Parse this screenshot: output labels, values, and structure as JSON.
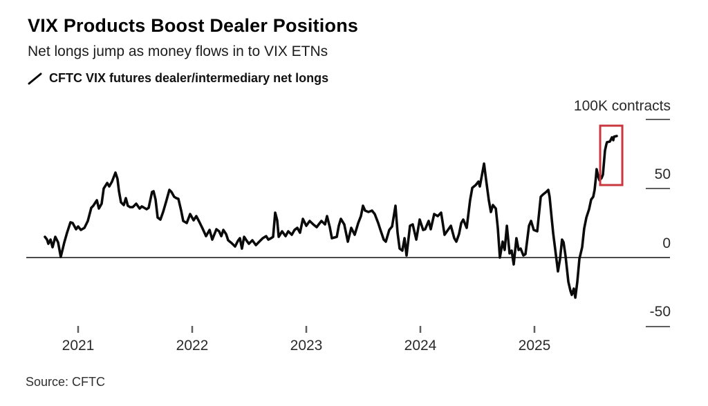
{
  "colors": {
    "background": "#ffffff",
    "title_text": "#000000",
    "subtitle_text": "#1b1b1b",
    "axis_text": "#2a2a2a",
    "tick": "#5e5e5e",
    "zero_line": "#4a4a4a",
    "series": "#0a0a0a",
    "highlight": "#c8373d"
  },
  "chart_data": {
    "type": "line",
    "title": "VIX Products Boost Dealer Positions",
    "subtitle": "Net longs jump as money flows in to VIX ETNs",
    "source": "Source: CFTC",
    "legend": [
      {
        "label": "CFTC VIX futures dealer/intermediary net longs",
        "marker": "diagonal-line",
        "color": "#0a0a0a"
      }
    ],
    "x_axis": {
      "range": [
        2020.65,
        2026.2
      ],
      "ticks": [
        {
          "value": 2021,
          "label": "2021"
        },
        {
          "value": 2022,
          "label": "2022"
        },
        {
          "value": 2023,
          "label": "2023"
        },
        {
          "value": 2024,
          "label": "2024"
        },
        {
          "value": 2025,
          "label": "2025"
        }
      ]
    },
    "y_axis": {
      "unit": "thousand contracts (K)",
      "range": [
        -65,
        112
      ],
      "grid": false,
      "position": "right",
      "ticks": [
        {
          "value": 100,
          "label": "100K contracts"
        },
        {
          "value": 50,
          "label": "50"
        },
        {
          "value": 0,
          "label": "0"
        },
        {
          "value": -50,
          "label": "-50"
        }
      ]
    },
    "series": [
      {
        "name": "CFTC VIX futures dealer/intermediary net longs",
        "color": "#0a0a0a",
        "points": [
          [
            2020.709,
            15
          ],
          [
            2020.727,
            13
          ],
          [
            2020.739,
            10
          ],
          [
            2020.758,
            13
          ],
          [
            2020.776,
            7.5
          ],
          [
            2020.8,
            15
          ],
          [
            2020.824,
            11
          ],
          [
            2020.848,
            0.5
          ],
          [
            2020.879,
            11
          ],
          [
            2020.903,
            18
          ],
          [
            2020.933,
            25.5
          ],
          [
            2020.952,
            25
          ],
          [
            2020.982,
            20.5
          ],
          [
            2021.0,
            22.5
          ],
          [
            2021.024,
            20
          ],
          [
            2021.055,
            21.5
          ],
          [
            2021.085,
            26.5
          ],
          [
            2021.115,
            36
          ],
          [
            2021.133,
            37.5
          ],
          [
            2021.164,
            41.5
          ],
          [
            2021.182,
            35.5
          ],
          [
            2021.206,
            39
          ],
          [
            2021.224,
            50
          ],
          [
            2021.255,
            54
          ],
          [
            2021.273,
            51.5
          ],
          [
            2021.297,
            55
          ],
          [
            2021.327,
            61.5
          ],
          [
            2021.345,
            57
          ],
          [
            2021.358,
            48
          ],
          [
            2021.376,
            40
          ],
          [
            2021.4,
            38
          ],
          [
            2021.418,
            43
          ],
          [
            2021.436,
            37.5
          ],
          [
            2021.455,
            36.5
          ],
          [
            2021.479,
            36.5
          ],
          [
            2021.509,
            39
          ],
          [
            2021.539,
            35.5
          ],
          [
            2021.558,
            37
          ],
          [
            2021.57,
            36.5
          ],
          [
            2021.6,
            35
          ],
          [
            2021.618,
            36
          ],
          [
            2021.648,
            47.5
          ],
          [
            2021.661,
            48
          ],
          [
            2021.679,
            42
          ],
          [
            2021.697,
            29
          ],
          [
            2021.721,
            27.5
          ],
          [
            2021.745,
            33
          ],
          [
            2021.77,
            40
          ],
          [
            2021.8,
            49
          ],
          [
            2021.818,
            47.5
          ],
          [
            2021.842,
            44
          ],
          [
            2021.861,
            43
          ],
          [
            2021.879,
            42.5
          ],
          [
            2021.903,
            34
          ],
          [
            2021.921,
            26.5
          ],
          [
            2021.952,
            25
          ],
          [
            2021.982,
            31.5
          ],
          [
            2022.012,
            27
          ],
          [
            2022.036,
            30
          ],
          [
            2022.061,
            26
          ],
          [
            2022.091,
            21
          ],
          [
            2022.121,
            15.5
          ],
          [
            2022.152,
            20
          ],
          [
            2022.176,
            13
          ],
          [
            2022.212,
            20.5
          ],
          [
            2022.236,
            19
          ],
          [
            2022.255,
            15.5
          ],
          [
            2022.273,
            20
          ],
          [
            2022.297,
            17
          ],
          [
            2022.315,
            12.5
          ],
          [
            2022.345,
            10.5
          ],
          [
            2022.376,
            8
          ],
          [
            2022.4,
            12
          ],
          [
            2022.418,
            14
          ],
          [
            2022.436,
            6.5
          ],
          [
            2022.455,
            15
          ],
          [
            2022.479,
            12
          ],
          [
            2022.497,
            10
          ],
          [
            2022.527,
            12.5
          ],
          [
            2022.558,
            9
          ],
          [
            2022.588,
            11.5
          ],
          [
            2022.618,
            14
          ],
          [
            2022.648,
            15.5
          ],
          [
            2022.667,
            13
          ],
          [
            2022.691,
            14
          ],
          [
            2022.709,
            15
          ],
          [
            2022.727,
            32.5
          ],
          [
            2022.745,
            27
          ],
          [
            2022.758,
            15
          ],
          [
            2022.788,
            19
          ],
          [
            2022.818,
            15.5
          ],
          [
            2022.842,
            19
          ],
          [
            2022.873,
            16.5
          ],
          [
            2022.897,
            20
          ],
          [
            2022.921,
            21.5
          ],
          [
            2022.945,
            18
          ],
          [
            2022.97,
            28
          ],
          [
            2023.0,
            23
          ],
          [
            2023.03,
            26.5
          ],
          [
            2023.061,
            24
          ],
          [
            2023.091,
            22
          ],
          [
            2023.109,
            24
          ],
          [
            2023.133,
            26.5
          ],
          [
            2023.164,
            24
          ],
          [
            2023.182,
            30
          ],
          [
            2023.206,
            22
          ],
          [
            2023.224,
            14
          ],
          [
            2023.267,
            15
          ],
          [
            2023.285,
            23
          ],
          [
            2023.303,
            28
          ],
          [
            2023.333,
            24
          ],
          [
            2023.364,
            11.5
          ],
          [
            2023.394,
            21.5
          ],
          [
            2023.424,
            16.5
          ],
          [
            2023.455,
            25
          ],
          [
            2023.479,
            30
          ],
          [
            2023.497,
            37.5
          ],
          [
            2023.515,
            34
          ],
          [
            2023.545,
            33
          ],
          [
            2023.576,
            34
          ],
          [
            2023.6,
            31.5
          ],
          [
            2023.63,
            25
          ],
          [
            2023.648,
            20.5
          ],
          [
            2023.679,
            13
          ],
          [
            2023.697,
            11.5
          ],
          [
            2023.727,
            20
          ],
          [
            2023.752,
            22.5
          ],
          [
            2023.782,
            37.5
          ],
          [
            2023.8,
            18
          ],
          [
            2023.818,
            6.5
          ],
          [
            2023.842,
            5
          ],
          [
            2023.861,
            14
          ],
          [
            2023.879,
            1.5
          ],
          [
            2023.909,
            23
          ],
          [
            2023.933,
            24
          ],
          [
            2023.964,
            13
          ],
          [
            2023.994,
            27.5
          ],
          [
            2024.024,
            20
          ],
          [
            2024.042,
            20.5
          ],
          [
            2024.073,
            26.5
          ],
          [
            2024.091,
            20.5
          ],
          [
            2024.121,
            31.5
          ],
          [
            2024.152,
            30
          ],
          [
            2024.182,
            32.5
          ],
          [
            2024.212,
            16.5
          ],
          [
            2024.242,
            20
          ],
          [
            2024.267,
            23
          ],
          [
            2024.297,
            14
          ],
          [
            2024.315,
            11.5
          ],
          [
            2024.339,
            17
          ],
          [
            2024.358,
            25
          ],
          [
            2024.376,
            27.5
          ],
          [
            2024.406,
            21.5
          ],
          [
            2024.436,
            41.5
          ],
          [
            2024.455,
            50.5
          ],
          [
            2024.485,
            52.5
          ],
          [
            2024.509,
            55
          ],
          [
            2024.521,
            51.5
          ],
          [
            2024.558,
            68
          ],
          [
            2024.576,
            56.5
          ],
          [
            2024.6,
            41.5
          ],
          [
            2024.618,
            33
          ],
          [
            2024.636,
            38
          ],
          [
            2024.661,
            35.5
          ],
          [
            2024.679,
            21.5
          ],
          [
            2024.697,
            0
          ],
          [
            2024.721,
            11.5
          ],
          [
            2024.739,
            5.5
          ],
          [
            2024.758,
            23
          ],
          [
            2024.782,
            3
          ],
          [
            2024.8,
            5
          ],
          [
            2024.818,
            -5
          ],
          [
            2024.842,
            14
          ],
          [
            2024.861,
            5.5
          ],
          [
            2024.879,
            6.5
          ],
          [
            2024.903,
            1.5
          ],
          [
            2024.921,
            2.5
          ],
          [
            2024.952,
            23
          ],
          [
            2024.97,
            26.5
          ],
          [
            2024.994,
            20
          ],
          [
            2025.024,
            19
          ],
          [
            2025.055,
            44
          ],
          [
            2025.073,
            45.5
          ],
          [
            2025.103,
            47.5
          ],
          [
            2025.121,
            49
          ],
          [
            2025.133,
            44
          ],
          [
            2025.152,
            27.5
          ],
          [
            2025.164,
            17.5
          ],
          [
            2025.182,
            6
          ],
          [
            2025.206,
            -10
          ],
          [
            2025.224,
            -1
          ],
          [
            2025.242,
            13
          ],
          [
            2025.255,
            11
          ],
          [
            2025.273,
            1
          ],
          [
            2025.297,
            -17.5
          ],
          [
            2025.315,
            -24
          ],
          [
            2025.327,
            -27
          ],
          [
            2025.345,
            -22.5
          ],
          [
            2025.358,
            -29
          ],
          [
            2025.376,
            -17.5
          ],
          [
            2025.394,
            -1
          ],
          [
            2025.418,
            7.5
          ],
          [
            2025.436,
            21
          ],
          [
            2025.455,
            29
          ],
          [
            2025.479,
            35
          ],
          [
            2025.497,
            42
          ],
          [
            2025.515,
            44
          ],
          [
            2025.527,
            49
          ],
          [
            2025.539,
            58
          ],
          [
            2025.545,
            64
          ],
          [
            2025.558,
            59
          ],
          [
            2025.57,
            56
          ],
          [
            2025.588,
            57.5
          ],
          [
            2025.6,
            60
          ],
          [
            2025.618,
            77.5
          ],
          [
            2025.63,
            82
          ],
          [
            2025.636,
            83.5
          ],
          [
            2025.661,
            84
          ],
          [
            2025.679,
            87
          ],
          [
            2025.691,
            85
          ],
          [
            2025.697,
            87.5
          ],
          [
            2025.721,
            88
          ]
        ]
      }
    ],
    "annotations": [
      {
        "type": "rect",
        "role": "highlight of recent jump in net longs",
        "color": "#c8373d",
        "x_range": [
          2025.576,
          2025.77
        ],
        "y_range": [
          52.5,
          95.5
        ]
      }
    ]
  }
}
